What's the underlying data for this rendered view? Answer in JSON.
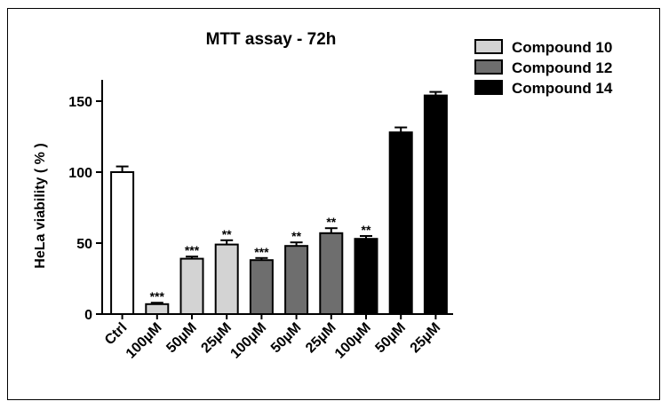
{
  "chart_data": {
    "type": "bar",
    "title": "MTT assay - 72h",
    "ylabel": "HeLa viability ( % )",
    "xlabel": "",
    "ylim": [
      0,
      165
    ],
    "yticks": [
      0,
      50,
      100,
      150
    ],
    "ytick_labels": [
      "0",
      "50",
      "100",
      "150"
    ],
    "categories": [
      "Ctrl",
      "100µM",
      "50µM",
      "25µM",
      "100µM",
      "50µM",
      "25µM",
      "100µM",
      "50µM",
      "25µM"
    ],
    "values": [
      100,
      7,
      39,
      49,
      38,
      48,
      57,
      53,
      128,
      154
    ],
    "errors": [
      4,
      1,
      1.5,
      3,
      1.5,
      2.5,
      3.5,
      2,
      3.5,
      2.5
    ],
    "significance": [
      "",
      "***",
      "***",
      "**",
      "***",
      "**",
      "**",
      "**",
      "",
      ""
    ],
    "groups": [
      "ctrl",
      "c10",
      "c10",
      "c10",
      "c12",
      "c12",
      "c12",
      "c14",
      "c14",
      "c14"
    ],
    "colors": {
      "ctrl": "#ffffff",
      "c10": "#d3d3d3",
      "c12": "#6e6e6e",
      "c14": "#000000"
    },
    "legend": [
      {
        "label": "Compound 10",
        "color": "#d3d3d3"
      },
      {
        "label": "Compound 12",
        "color": "#6e6e6e"
      },
      {
        "label": "Compound 14",
        "color": "#000000"
      }
    ],
    "legend_position": "top-right"
  }
}
